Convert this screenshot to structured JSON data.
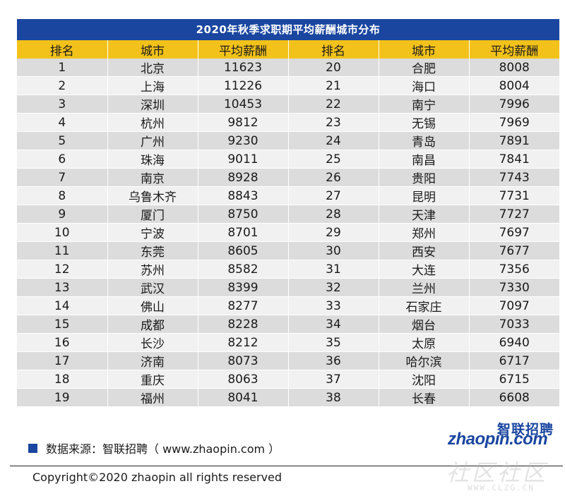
{
  "title": "2020年秋季求职期平均薪酬城市分布",
  "columns": [
    "排名",
    "城市",
    "平均薪酬",
    "排名",
    "城市",
    "平均薪酬"
  ],
  "rows": [
    [
      "1",
      "北京",
      "11623",
      "20",
      "合肥",
      "8008"
    ],
    [
      "2",
      "上海",
      "11226",
      "21",
      "海口",
      "8004"
    ],
    [
      "3",
      "深圳",
      "10453",
      "22",
      "南宁",
      "7996"
    ],
    [
      "4",
      "杭州",
      "9812",
      "23",
      "无锡",
      "7969"
    ],
    [
      "5",
      "广州",
      "9230",
      "24",
      "青岛",
      "7891"
    ],
    [
      "6",
      "珠海",
      "9011",
      "25",
      "南昌",
      "7841"
    ],
    [
      "7",
      "南京",
      "8928",
      "26",
      "贵阳",
      "7743"
    ],
    [
      "8",
      "乌鲁木齐",
      "8843",
      "27",
      "昆明",
      "7731"
    ],
    [
      "9",
      "厦门",
      "8750",
      "28",
      "天津",
      "7727"
    ],
    [
      "10",
      "宁波",
      "8701",
      "29",
      "郑州",
      "7697"
    ],
    [
      "11",
      "东莞",
      "8605",
      "30",
      "西安",
      "7677"
    ],
    [
      "12",
      "苏州",
      "8582",
      "31",
      "大连",
      "7356"
    ],
    [
      "13",
      "武汉",
      "8399",
      "32",
      "兰州",
      "7330"
    ],
    [
      "14",
      "佛山",
      "8277",
      "33",
      "石家庄",
      "7097"
    ],
    [
      "15",
      "成都",
      "8228",
      "34",
      "烟台",
      "7033"
    ],
    [
      "16",
      "长沙",
      "8212",
      "35",
      "太原",
      "6940"
    ],
    [
      "17",
      "济南",
      "8073",
      "36",
      "哈尔滨",
      "6717"
    ],
    [
      "18",
      "重庆",
      "8063",
      "37",
      "沈阳",
      "6715"
    ],
    [
      "19",
      "福州",
      "8041",
      "38",
      "长春",
      "6608"
    ]
  ],
  "source": "数据来源：智联招聘（ www.zhaopin.com ）",
  "copyright": "Copyright©2020 zhaopin all rights reserved",
  "logo": {
    "cn": "智联招聘",
    "en": "zhaopin.com"
  },
  "watermark": {
    "text": "社区社区",
    "url": "WWW.CLZG.CN"
  },
  "colors": {
    "title_bg": "#1a46a0",
    "header_bg": "#f3c21a",
    "row_odd": "#dcdcdc",
    "row_even": "#f1f1f1"
  }
}
